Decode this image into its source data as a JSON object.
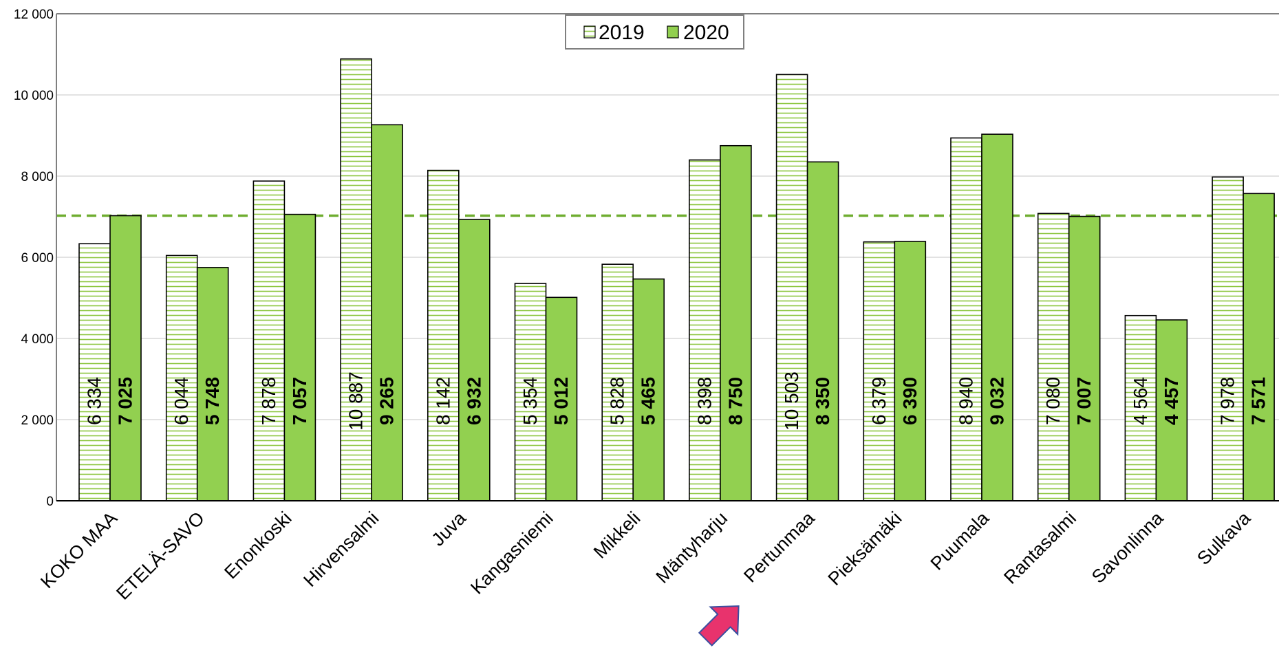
{
  "chart_data": {
    "type": "bar",
    "title": "",
    "xlabel": "",
    "ylabel": "",
    "ylim": [
      0,
      12000
    ],
    "yticks": [
      "0",
      "2 000",
      "4 000",
      "6 000",
      "8 000",
      "10 000",
      "12 000"
    ],
    "yticks_values": [
      0,
      2000,
      4000,
      6000,
      8000,
      10000,
      12000
    ],
    "categories": [
      "KOKO MAA",
      "ETELÄ-SAVO",
      "Enonkoski",
      "Hirvensalmi",
      "Juva",
      "Kangasniemi",
      "Mikkeli",
      "Mäntyharju",
      "Pertunmaa",
      "Pieksämäki",
      "Puumala",
      "Rantasalmi",
      "Savonlinna",
      "Sulkava"
    ],
    "series": [
      {
        "name": "2019",
        "values": [
          6334,
          6044,
          7878,
          10887,
          8142,
          5354,
          5828,
          8398,
          10503,
          6379,
          8940,
          7080,
          4564,
          7978
        ],
        "labels": [
          "6 334",
          "6 044",
          "7 878",
          "10 887",
          "8 142",
          "5 354",
          "5 828",
          "8 398",
          "10 503",
          "6 379",
          "8 940",
          "7 080",
          "4 564",
          "7 978"
        ],
        "style": "horizontal-hatch",
        "color": "#8DC63F"
      },
      {
        "name": "2020",
        "values": [
          7025,
          5748,
          7057,
          9265,
          6932,
          5012,
          5465,
          8750,
          8350,
          6390,
          9032,
          7007,
          4457,
          7571
        ],
        "labels": [
          "7 025",
          "5 748",
          "7 057",
          "9 265",
          "6 932",
          "5 012",
          "5 465",
          "8 750",
          "8 350",
          "6 390",
          "9 032",
          "7 007",
          "4 457",
          "7 571"
        ],
        "style": "solid",
        "color": "#92D050"
      }
    ],
    "reference_line": {
      "value": 7025,
      "style": "dashed",
      "color": "#6FAD30"
    },
    "grid": true,
    "legend_position": "top-center",
    "highlight_arrow": {
      "category": "Pertunmaa",
      "color": "#E8336D"
    }
  }
}
